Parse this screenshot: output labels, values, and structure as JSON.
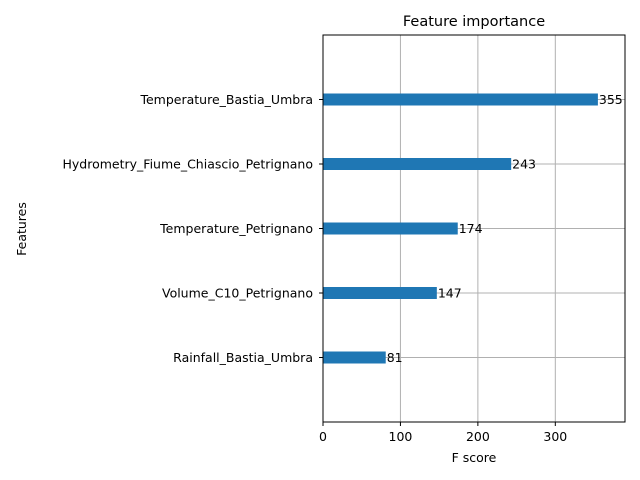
{
  "chart_data": {
    "type": "bar",
    "orientation": "horizontal",
    "title": "Feature importance",
    "xlabel": "F score",
    "ylabel": "Features",
    "categories": [
      "Rainfall_Bastia_Umbra",
      "Volume_C10_Petrignano",
      "Temperature_Petrignano",
      "Hydrometry_Fiume_Chiascio_Petrignano",
      "Temperature_Bastia_Umbra"
    ],
    "values": [
      81,
      147,
      174,
      243,
      355
    ],
    "xlim": [
      0,
      390
    ],
    "xticks": [
      0,
      100,
      200,
      300
    ],
    "grid": true,
    "bar_color": "#1f77b4",
    "data_labels": true
  }
}
